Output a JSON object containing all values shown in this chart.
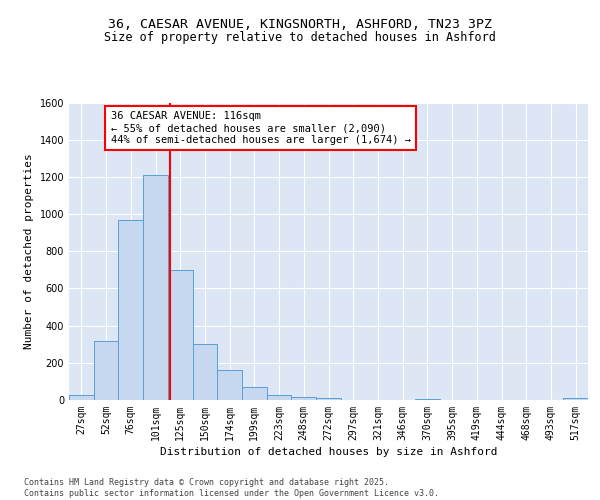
{
  "title_line1": "36, CAESAR AVENUE, KINGSNORTH, ASHFORD, TN23 3PZ",
  "title_line2": "Size of property relative to detached houses in Ashford",
  "xlabel": "Distribution of detached houses by size in Ashford",
  "ylabel": "Number of detached properties",
  "bin_labels": [
    "27sqm",
    "52sqm",
    "76sqm",
    "101sqm",
    "125sqm",
    "150sqm",
    "174sqm",
    "199sqm",
    "223sqm",
    "248sqm",
    "272sqm",
    "297sqm",
    "321sqm",
    "346sqm",
    "370sqm",
    "395sqm",
    "419sqm",
    "444sqm",
    "468sqm",
    "493sqm",
    "517sqm"
  ],
  "bar_values": [
    25,
    320,
    970,
    1210,
    700,
    300,
    160,
    70,
    25,
    15,
    10,
    0,
    0,
    0,
    5,
    0,
    0,
    0,
    0,
    0,
    10
  ],
  "bar_color": "#c5d8f0",
  "bar_edge_color": "#5a9fd4",
  "bg_color": "#dce6f5",
  "grid_color": "#ffffff",
  "vline_color": "red",
  "annotation_text": "36 CAESAR AVENUE: 116sqm\n← 55% of detached houses are smaller (2,090)\n44% of semi-detached houses are larger (1,674) →",
  "ylim": [
    0,
    1600
  ],
  "yticks": [
    0,
    200,
    400,
    600,
    800,
    1000,
    1200,
    1400,
    1600
  ],
  "footnote": "Contains HM Land Registry data © Crown copyright and database right 2025.\nContains public sector information licensed under the Open Government Licence v3.0.",
  "title_fontsize": 9.5,
  "subtitle_fontsize": 8.5,
  "axis_label_fontsize": 8,
  "tick_fontsize": 7,
  "annot_fontsize": 7.5
}
